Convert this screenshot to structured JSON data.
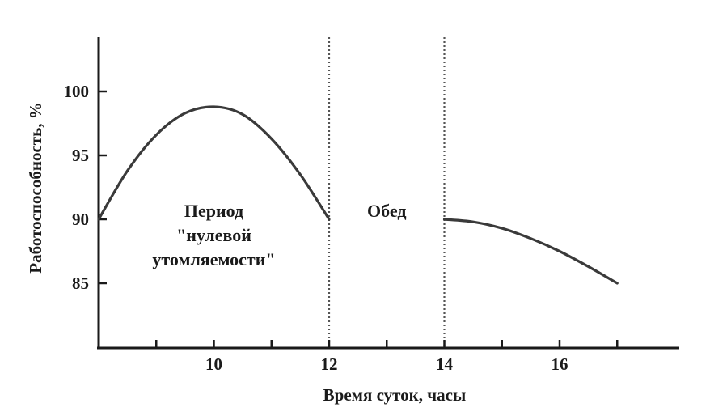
{
  "chart_data": {
    "type": "line",
    "xlabel": "Время суток, часы",
    "ylabel": "Работоспособность, %",
    "xlim": [
      8,
      18
    ],
    "ylim": [
      80,
      104
    ],
    "x_ticks": [
      9,
      10,
      11,
      12,
      13,
      14,
      15,
      16,
      17
    ],
    "x_tick_labels": [
      {
        "x": 10,
        "label": "10"
      },
      {
        "x": 12,
        "label": "12"
      },
      {
        "x": 14,
        "label": "14"
      },
      {
        "x": 16,
        "label": "16"
      }
    ],
    "y_ticks": [
      85,
      90,
      95,
      100
    ],
    "y_tick_labels": [
      "85",
      "90",
      "95",
      "100"
    ],
    "grid": false,
    "vertical_markers": [
      12,
      14
    ],
    "series": [
      {
        "segment": "morning",
        "x": [
          8,
          8.5,
          9,
          9.5,
          10,
          10.5,
          11,
          11.5,
          12
        ],
        "y": [
          90,
          93.8,
          96.6,
          98.3,
          98.8,
          98.2,
          96.3,
          93.5,
          90
        ]
      },
      {
        "segment": "afternoon",
        "x": [
          14,
          14.5,
          15,
          15.5,
          16,
          16.5,
          17
        ],
        "y": [
          90,
          89.8,
          89.3,
          88.5,
          87.5,
          86.3,
          85
        ]
      }
    ],
    "annotations": [
      {
        "x": 10,
        "y": 90.2,
        "lines": [
          "Период",
          "\"нулевой",
          "утомляемости\""
        ]
      },
      {
        "x": 13,
        "y": 90.2,
        "lines": [
          "Обед"
        ]
      }
    ]
  }
}
